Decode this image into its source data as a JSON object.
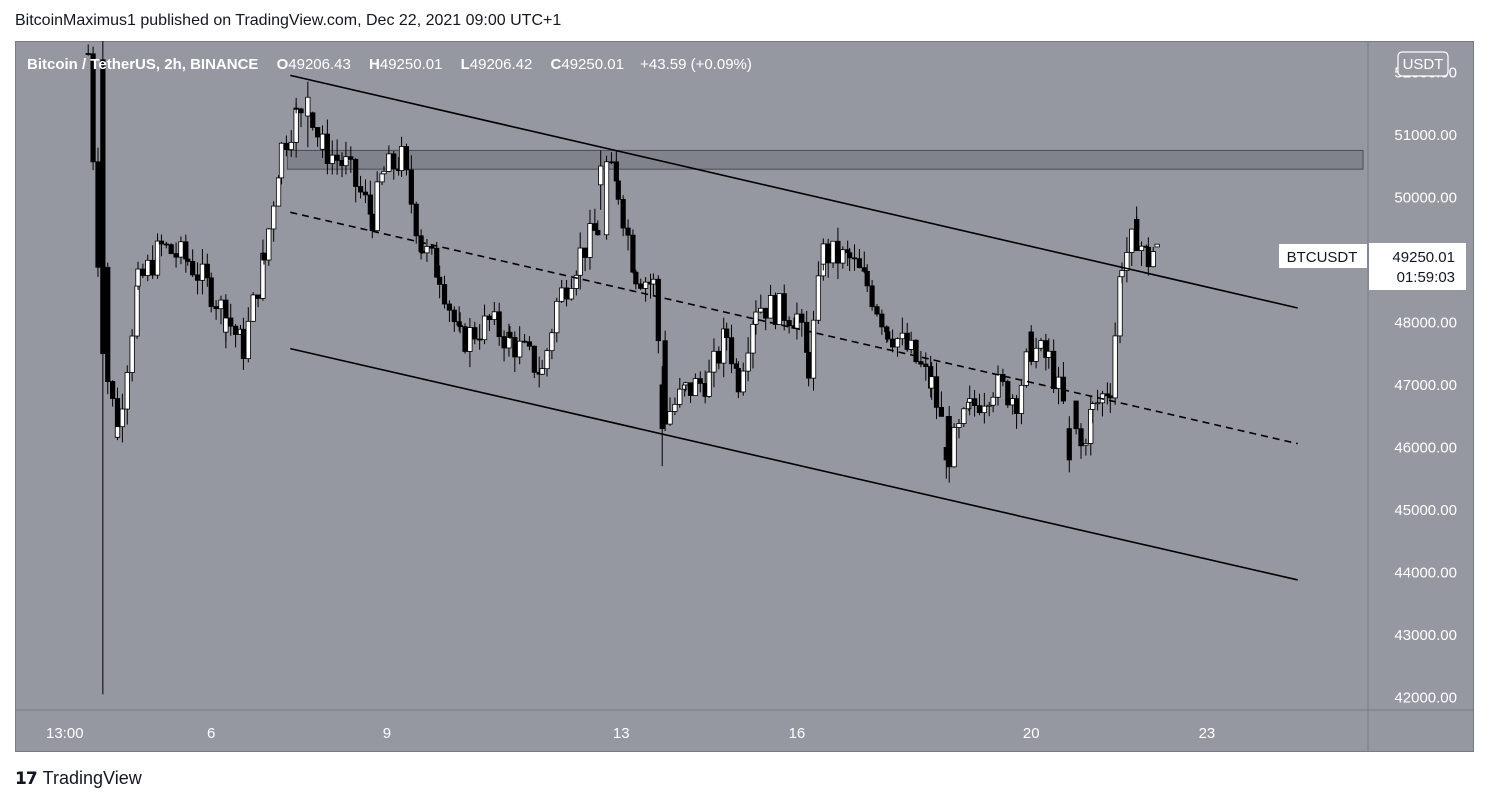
{
  "header": {
    "text": "BitcoinMaximus1 published on TradingView.com, Dec 22, 2021 09:00 UTC+1"
  },
  "legend": {
    "symbol": "Bitcoin / TetherUS, 2h, BINANCE",
    "o_label": "O",
    "o_value": "49206.43",
    "h_label": "H",
    "h_value": "49250.01",
    "l_label": "L",
    "l_value": "49206.42",
    "c_label": "C",
    "c_value": "49250.01",
    "change": "+43.59 (+0.09%)"
  },
  "currency": "USDT",
  "price_tag": {
    "ticker": "BTCUSDT",
    "price": "49250.01",
    "countdown": "01:59:03"
  },
  "footer": {
    "brand": "TradingView",
    "logo_icon": "tradingview-logo-icon"
  },
  "colors": {
    "background": "#9598a1",
    "candle_up": "#ffffff",
    "candle_down": "#000000",
    "text_light": "#ffffff",
    "line": "#000000"
  },
  "chart_data": {
    "type": "candlestick",
    "y_ticks": [
      "52000.00",
      "51000.00",
      "50000.00",
      "49000.00",
      "48000.00",
      "47000.00",
      "46000.00",
      "45000.00",
      "44000.00",
      "43000.00",
      "42000.00"
    ],
    "x_ticks": [
      {
        "label": "13:00",
        "day": 3.5
      },
      {
        "label": "6",
        "day": 6
      },
      {
        "label": "9",
        "day": 9
      },
      {
        "label": "13",
        "day": 13
      },
      {
        "label": "16",
        "day": 16
      },
      {
        "label": "20",
        "day": 20
      },
      {
        "label": "23",
        "day": 23
      }
    ],
    "ylim": [
      41800,
      52500
    ],
    "xlim_days": [
      2.65,
      25.75
    ],
    "resistance_zone": [
      50450,
      50750
    ],
    "channel": {
      "upper": [
        [
          7.35,
          51950
        ],
        [
          24.55,
          48230
        ]
      ],
      "middle": [
        [
          7.35,
          49760
        ],
        [
          24.55,
          46060
        ]
      ],
      "lower": [
        [
          7.35,
          47580
        ],
        [
          24.55,
          43880
        ]
      ]
    },
    "key_candles": [
      {
        "day": 4.15,
        "o": 52200,
        "h": 52500,
        "l": 42050,
        "c": 47500
      },
      {
        "day": 7.65,
        "o": 51300,
        "h": 51850,
        "l": 50800,
        "c": 51600
      },
      {
        "day": 12.65,
        "o": 50200,
        "h": 50750,
        "l": 49800,
        "c": 50500
      },
      {
        "day": 13.7,
        "o": 47000,
        "h": 47300,
        "l": 45700,
        "c": 46300
      },
      {
        "day": 18.55,
        "o": 46000,
        "h": 46500,
        "l": 45500,
        "c": 45800
      },
      {
        "day": 20.65,
        "o": 46300,
        "h": 46500,
        "l": 45600,
        "c": 45800
      },
      {
        "day": 22.15,
        "o": 49206.43,
        "h": 49250.01,
        "l": 49206.42,
        "c": 49250.01
      }
    ],
    "price_path": [
      [
        3.9,
        52300
      ],
      [
        4.15,
        47500
      ],
      [
        4.4,
        46300
      ],
      [
        4.75,
        48600
      ],
      [
        5.15,
        49200
      ],
      [
        5.6,
        49000
      ],
      [
        6.0,
        48500
      ],
      [
        6.25,
        48100
      ],
      [
        6.55,
        47600
      ],
      [
        6.9,
        49000
      ],
      [
        7.2,
        50800
      ],
      [
        7.45,
        51300
      ],
      [
        7.65,
        51600
      ],
      [
        7.9,
        50800
      ],
      [
        8.3,
        50500
      ],
      [
        8.75,
        49700
      ],
      [
        8.95,
        50400
      ],
      [
        9.25,
        50600
      ],
      [
        9.6,
        49200
      ],
      [
        9.9,
        48800
      ],
      [
        10.25,
        47700
      ],
      [
        10.75,
        48000
      ],
      [
        11.1,
        47700
      ],
      [
        11.35,
        47500
      ],
      [
        11.65,
        47200
      ],
      [
        11.9,
        48300
      ],
      [
        12.3,
        49100
      ],
      [
        12.6,
        49500
      ],
      [
        12.75,
        50500
      ],
      [
        12.95,
        50100
      ],
      [
        13.25,
        48800
      ],
      [
        13.55,
        48600
      ],
      [
        13.75,
        46500
      ],
      [
        14.1,
        46900
      ],
      [
        14.5,
        47100
      ],
      [
        14.8,
        47800
      ],
      [
        15.0,
        47100
      ],
      [
        15.3,
        48300
      ],
      [
        15.7,
        48200
      ],
      [
        16.0,
        48100
      ],
      [
        16.2,
        47300
      ],
      [
        16.45,
        49100
      ],
      [
        16.9,
        49000
      ],
      [
        17.2,
        48600
      ],
      [
        17.55,
        47900
      ],
      [
        17.95,
        47500
      ],
      [
        18.3,
        47000
      ],
      [
        18.6,
        45900
      ],
      [
        18.95,
        46600
      ],
      [
        19.35,
        47000
      ],
      [
        19.75,
        46800
      ],
      [
        20.0,
        47600
      ],
      [
        20.3,
        47400
      ],
      [
        20.6,
        46500
      ],
      [
        20.85,
        46000
      ],
      [
        21.05,
        46600
      ],
      [
        21.35,
        47000
      ],
      [
        21.55,
        49000
      ],
      [
        21.8,
        49400
      ],
      [
        22.0,
        49000
      ],
      [
        22.15,
        49250
      ]
    ]
  }
}
